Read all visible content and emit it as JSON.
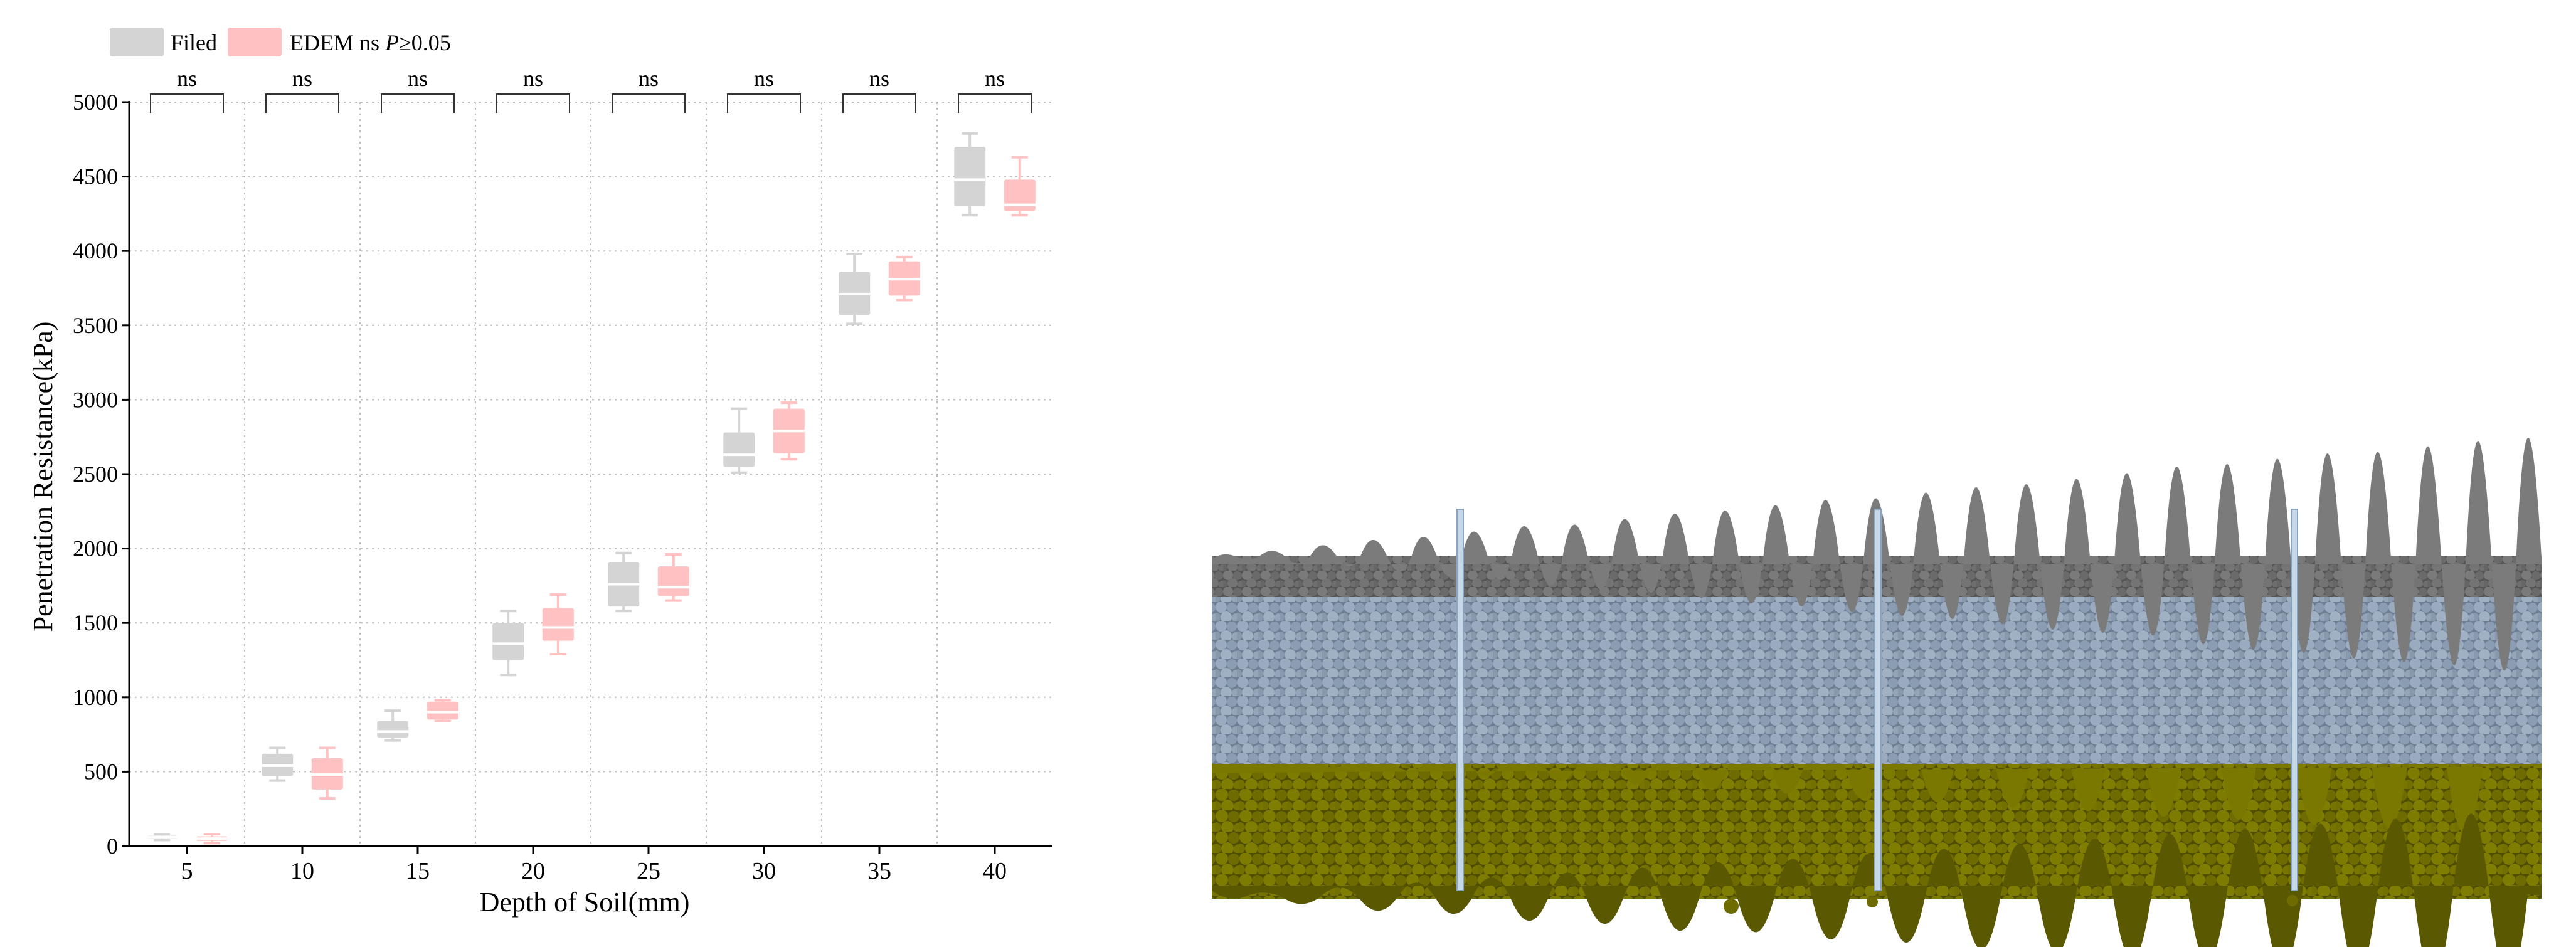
{
  "chart_data": {
    "type": "box",
    "xlabel": "Depth of Soil(mm)",
    "ylabel": "Penetration Resistance(kPa)",
    "ylim": [
      0,
      5000
    ],
    "yticks": [
      0,
      500,
      1000,
      1500,
      2000,
      2500,
      3000,
      3500,
      4000,
      4500,
      5000
    ],
    "categories": [
      "5",
      "10",
      "15",
      "20",
      "25",
      "30",
      "35",
      "40"
    ],
    "grid": true,
    "legend_position": "top-left",
    "legend": {
      "filed": "Filed",
      "edem": "EDEM",
      "ns_note": "ns",
      "p_symbol": "P",
      "p_threshold": "≥0.05"
    },
    "significance": [
      "ns",
      "ns",
      "ns",
      "ns",
      "ns",
      "ns",
      "ns",
      "ns"
    ],
    "series": [
      {
        "name": "Filed",
        "color": "#d4d4d4",
        "boxes": [
          {
            "min": 40,
            "q1": 50,
            "median": 60,
            "q3": 70,
            "max": 80
          },
          {
            "min": 440,
            "q1": 470,
            "median": 540,
            "q3": 620,
            "max": 660
          },
          {
            "min": 710,
            "q1": 730,
            "median": 770,
            "q3": 840,
            "max": 910
          },
          {
            "min": 1150,
            "q1": 1250,
            "median": 1360,
            "q3": 1500,
            "max": 1580
          },
          {
            "min": 1580,
            "q1": 1610,
            "median": 1760,
            "q3": 1910,
            "max": 1970
          },
          {
            "min": 2510,
            "q1": 2550,
            "median": 2630,
            "q3": 2780,
            "max": 2940
          },
          {
            "min": 3510,
            "q1": 3570,
            "median": 3710,
            "q3": 3860,
            "max": 3980
          },
          {
            "min": 4240,
            "q1": 4300,
            "median": 4480,
            "q3": 4700,
            "max": 4790
          }
        ]
      },
      {
        "name": "EDEM",
        "color": "#ffc1c1",
        "boxes": [
          {
            "min": 20,
            "q1": 35,
            "median": 50,
            "q3": 65,
            "max": 80
          },
          {
            "min": 320,
            "q1": 380,
            "median": 480,
            "q3": 590,
            "max": 660
          },
          {
            "min": 840,
            "q1": 850,
            "median": 900,
            "q3": 970,
            "max": 980
          },
          {
            "min": 1290,
            "q1": 1380,
            "median": 1470,
            "q3": 1600,
            "max": 1690
          },
          {
            "min": 1650,
            "q1": 1680,
            "median": 1740,
            "q3": 1880,
            "max": 1960
          },
          {
            "min": 2600,
            "q1": 2640,
            "median": 2790,
            "q3": 2940,
            "max": 2980
          },
          {
            "min": 3670,
            "q1": 3700,
            "median": 3810,
            "q3": 3930,
            "max": 3960
          },
          {
            "min": 4240,
            "q1": 4270,
            "median": 4310,
            "q3": 4480,
            "max": 4630
          }
        ]
      }
    ]
  },
  "colors": {
    "top_layer": "#6f6f6f",
    "middle_layer": "#93a4b8",
    "bottom_layer": "#7a7800",
    "probe": "#c6d8e8"
  }
}
